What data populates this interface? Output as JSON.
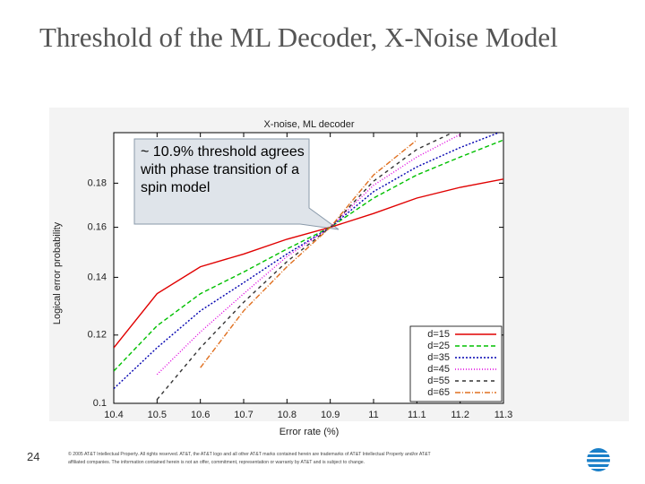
{
  "slide_title": "Threshold of the ML Decoder, X-Noise Model",
  "slide_number": "24",
  "footer": "© 2005 AT&T Intellectual Property. All rights reserved. AT&T, the AT&T logo and all other AT&T marks contained herein are trademarks of AT&T Intellectual Property and/or AT&T affiliated companies. The information contained herein is not an offer, commitment, representation or warranty by AT&T and is subject to change.",
  "chart_data": {
    "type": "line",
    "title": "X-noise, ML decoder",
    "x_label": "Error rate (%)",
    "y_label": "Logical error probability",
    "annotation": "~ 10.9% threshold agrees with phase transition of a spin model",
    "x": [
      10.4,
      10.5,
      10.6,
      10.7,
      10.8,
      10.9,
      11.0,
      11.1,
      11.2,
      11.3
    ],
    "xlim": [
      10.4,
      11.3
    ],
    "xticks": [
      10.4,
      10.5,
      10.6,
      10.7,
      10.8,
      10.9,
      11,
      11.1,
      11.2,
      11.3
    ],
    "ylim": [
      0.1,
      0.206
    ],
    "yticks": [
      0.1,
      0.12,
      0.14,
      0.16,
      0.18
    ],
    "y_scale": "log",
    "legend": "lower right",
    "series": [
      {
        "name": "d=15",
        "color": "#e00000",
        "dash": "none",
        "values": [
          0.116,
          0.134,
          0.144,
          0.149,
          0.155,
          0.16,
          0.166,
          0.173,
          0.178,
          0.182
        ]
      },
      {
        "name": "d=25",
        "color": "#00c000",
        "dash": "5,3",
        "values": [
          0.109,
          0.123,
          0.134,
          0.142,
          0.151,
          0.16,
          0.173,
          0.184,
          0.193,
          0.202
        ]
      },
      {
        "name": "d=35",
        "color": "#0000b0",
        "dash": "2,2",
        "values": [
          0.104,
          0.116,
          0.128,
          0.138,
          0.149,
          0.16,
          0.176,
          0.188,
          0.198,
          0.207
        ]
      },
      {
        "name": "d=45",
        "color": "#e000e0",
        "dash": "1,2",
        "values": [
          null,
          0.108,
          0.121,
          0.134,
          0.148,
          0.16,
          0.179,
          0.193,
          0.205,
          null
        ]
      },
      {
        "name": "d=55",
        "color": "#333333",
        "dash": "4,4",
        "values": [
          null,
          0.101,
          0.116,
          0.131,
          0.146,
          0.16,
          0.181,
          0.197,
          0.208,
          null
        ]
      },
      {
        "name": "d=65",
        "color": "#e07020",
        "dash": "6,2,1,2",
        "values": [
          null,
          null,
          0.11,
          0.128,
          0.144,
          0.16,
          0.184,
          0.202,
          null,
          null
        ]
      }
    ]
  }
}
